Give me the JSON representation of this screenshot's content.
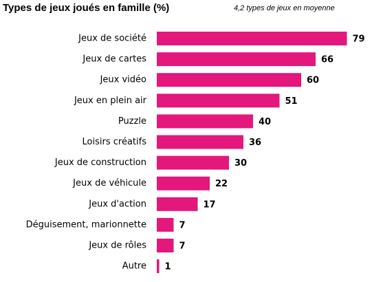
{
  "chart_data": {
    "type": "bar",
    "orientation": "horizontal",
    "title": "Types de jeux joués en famille (%)",
    "subtitle": "4,2 types de jeux en moyenne",
    "categories": [
      "Jeux de société",
      "Jeux de cartes",
      "Jeux vidéo",
      "Jeux en plein air",
      "Puzzle",
      "Loisirs créatifs",
      "Jeux de construction",
      "Jeux de véhicule",
      "Jeux d'action",
      "Déguisement, marionnette",
      "Jeux de rôles",
      "Autre"
    ],
    "values": [
      79,
      66,
      60,
      51,
      40,
      36,
      30,
      22,
      17,
      7,
      7,
      1
    ],
    "color": "#e3177c"
  }
}
